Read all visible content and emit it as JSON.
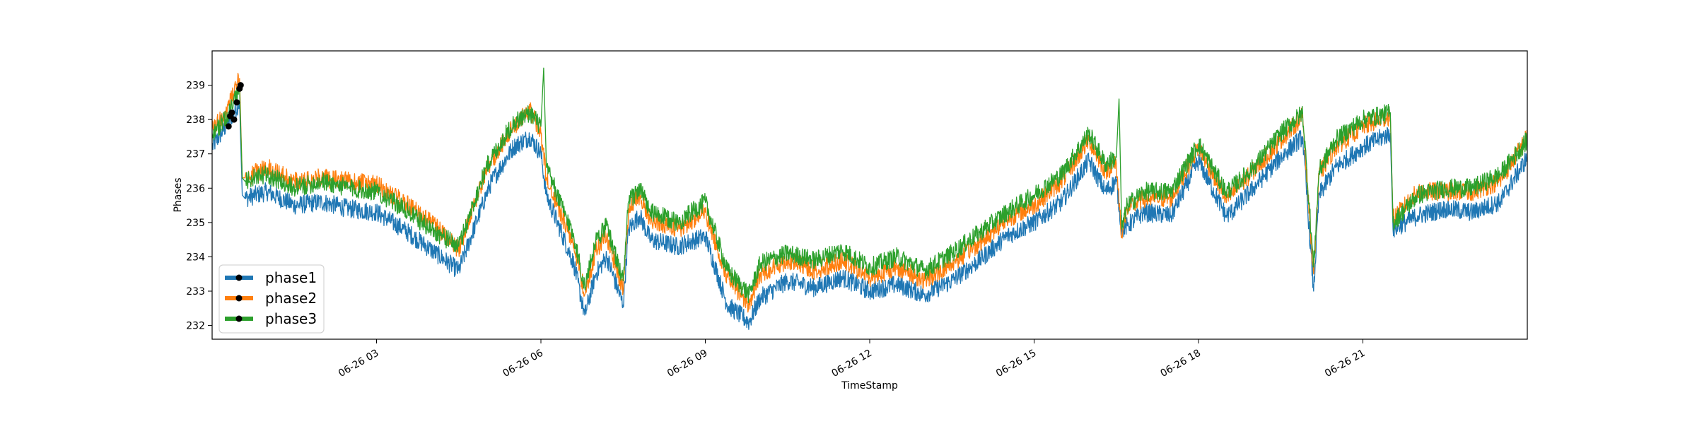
{
  "chart_data": {
    "type": "line",
    "title": "",
    "xlabel": "TimeStamp",
    "ylabel": "Phases",
    "x_range_hours": [
      0,
      24
    ],
    "ylim": [
      231.6,
      240.0
    ],
    "grid": false,
    "legend_position": "lower-left",
    "x_ticks": [
      {
        "hour": 3,
        "label": "06-26 03"
      },
      {
        "hour": 6,
        "label": "06-26 06"
      },
      {
        "hour": 9,
        "label": "06-26 09"
      },
      {
        "hour": 12,
        "label": "06-26 12"
      },
      {
        "hour": 15,
        "label": "06-26 15"
      },
      {
        "hour": 18,
        "label": "06-26 18"
      },
      {
        "hour": 21,
        "label": "06-26 21"
      }
    ],
    "y_ticks": [
      232,
      233,
      234,
      235,
      236,
      237,
      238,
      239
    ],
    "series": [
      {
        "name": "phase1",
        "color": "#1f77b4",
        "x": [
          0,
          0.25,
          0.5,
          0.55,
          0.6,
          1,
          1.5,
          2,
          2.5,
          3,
          3.5,
          4,
          4.5,
          5,
          5.1,
          5.5,
          5.8,
          6,
          6.1,
          6.3,
          6.6,
          6.8,
          7,
          7.2,
          7.5,
          7.6,
          7.8,
          8,
          8.5,
          9,
          9.4,
          9.8,
          10,
          10.5,
          11,
          11.5,
          12,
          12.5,
          13,
          13.5,
          14,
          14.5,
          15,
          15.5,
          16,
          16.3,
          16.5,
          16.6,
          16.7,
          17,
          17.5,
          18,
          18.5,
          18.6,
          19,
          19.5,
          19.9,
          20.1,
          20.2,
          20.5,
          21,
          21.5,
          21.55,
          22,
          22.5,
          23,
          23.5,
          24
        ],
        "y": [
          237.2,
          237.8,
          238.5,
          235.8,
          235.7,
          235.9,
          235.5,
          235.6,
          235.4,
          235.3,
          234.8,
          234.2,
          233.6,
          235.8,
          236.2,
          237.2,
          237.5,
          237.0,
          235.8,
          235.0,
          233.8,
          232.3,
          233.5,
          234.0,
          232.6,
          234.8,
          235.2,
          234.5,
          234.3,
          234.6,
          232.6,
          232.1,
          232.8,
          233.3,
          233.1,
          233.4,
          233.0,
          233.2,
          232.9,
          233.3,
          233.9,
          234.6,
          235.0,
          235.6,
          236.8,
          235.9,
          236.2,
          234.8,
          234.9,
          235.3,
          235.2,
          236.8,
          235.2,
          235.3,
          236.0,
          236.9,
          237.5,
          233.0,
          235.8,
          236.6,
          237.2,
          237.6,
          234.8,
          235.2,
          235.4,
          235.3,
          235.6,
          236.9
        ]
      },
      {
        "name": "phase2",
        "color": "#ff7f0e",
        "x": [
          0,
          0.25,
          0.5,
          0.55,
          0.6,
          1,
          1.5,
          2,
          2.5,
          3,
          3.5,
          4,
          4.5,
          5,
          5.1,
          5.5,
          5.8,
          6,
          6.1,
          6.3,
          6.6,
          6.8,
          7,
          7.2,
          7.5,
          7.6,
          7.8,
          8,
          8.5,
          9,
          9.4,
          9.8,
          10,
          10.5,
          11,
          11.5,
          12,
          12.5,
          13,
          13.5,
          14,
          14.5,
          15,
          15.5,
          16,
          16.3,
          16.5,
          16.6,
          16.7,
          17,
          17.5,
          18,
          18.5,
          18.6,
          19,
          19.5,
          19.9,
          20.1,
          20.2,
          20.5,
          21,
          21.5,
          21.55,
          22,
          22.5,
          23,
          23.5,
          24
        ],
        "y": [
          237.7,
          238.2,
          239.2,
          236.3,
          236.3,
          236.6,
          236.2,
          236.3,
          236.2,
          236.1,
          235.6,
          235.0,
          234.2,
          236.5,
          236.8,
          237.8,
          238.3,
          237.6,
          236.3,
          235.5,
          234.4,
          232.9,
          234.2,
          234.6,
          233.0,
          235.4,
          235.8,
          235.1,
          234.8,
          235.3,
          233.4,
          232.6,
          233.5,
          233.9,
          233.6,
          233.9,
          233.4,
          233.7,
          233.3,
          233.8,
          234.4,
          235.1,
          235.5,
          236.2,
          237.4,
          236.5,
          236.7,
          234.6,
          235.4,
          235.7,
          235.7,
          237.2,
          235.7,
          235.8,
          236.5,
          237.4,
          238.1,
          233.5,
          236.4,
          237.2,
          237.8,
          238.1,
          235.1,
          235.9,
          235.9,
          235.9,
          236.2,
          237.5
        ]
      },
      {
        "name": "phase3",
        "color": "#2ca02c",
        "x": [
          0,
          0.25,
          0.5,
          0.55,
          0.6,
          1,
          1.5,
          2,
          2.5,
          3,
          3.5,
          4,
          4.5,
          5,
          5.1,
          5.5,
          5.8,
          6,
          6.05,
          6.1,
          6.3,
          6.6,
          6.8,
          7,
          7.2,
          7.5,
          7.6,
          7.8,
          8,
          8.5,
          9,
          9.4,
          9.8,
          10,
          10.5,
          11,
          11.5,
          12,
          12.5,
          13,
          13.5,
          14,
          14.5,
          15,
          15.5,
          16,
          16.3,
          16.5,
          16.55,
          16.6,
          16.7,
          17,
          17.5,
          18,
          18.5,
          18.6,
          19,
          19.5,
          19.9,
          20.1,
          20.2,
          20.5,
          21,
          21.5,
          21.55,
          22,
          22.5,
          23,
          23.5,
          24
        ],
        "y": [
          237.6,
          238.0,
          238.9,
          236.3,
          236.2,
          236.4,
          236.0,
          236.2,
          236.0,
          235.9,
          235.4,
          234.8,
          234.3,
          236.6,
          236.9,
          237.9,
          238.2,
          237.8,
          239.5,
          236.6,
          235.8,
          234.6,
          233.1,
          234.5,
          234.9,
          233.3,
          235.6,
          236.0,
          235.3,
          235.0,
          235.6,
          233.6,
          232.9,
          233.8,
          234.1,
          233.9,
          234.2,
          233.7,
          234.0,
          233.6,
          234.1,
          234.7,
          235.3,
          235.8,
          236.4,
          237.6,
          236.7,
          236.9,
          238.6,
          234.8,
          235.5,
          235.9,
          235.9,
          237.3,
          235.9,
          236.0,
          236.6,
          237.6,
          238.2,
          233.7,
          236.5,
          237.4,
          238.0,
          238.2,
          235.0,
          235.8,
          236.0,
          236.0,
          236.4,
          237.4
        ]
      }
    ],
    "markers": [
      {
        "x": 0.3,
        "y": 237.8
      },
      {
        "x": 0.33,
        "y": 238.1
      },
      {
        "x": 0.36,
        "y": 238.2
      },
      {
        "x": 0.4,
        "y": 238.0
      },
      {
        "x": 0.45,
        "y": 238.5
      },
      {
        "x": 0.5,
        "y": 238.9
      },
      {
        "x": 0.52,
        "y": 239.0
      }
    ]
  }
}
